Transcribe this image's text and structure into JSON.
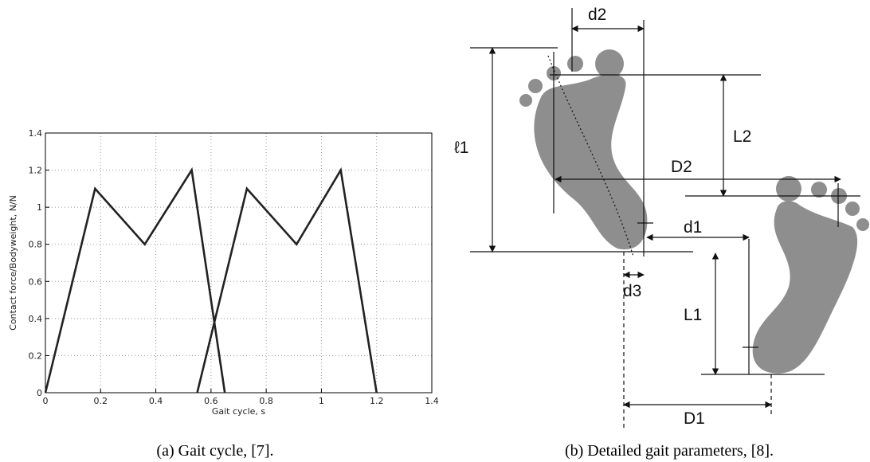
{
  "chart_data": {
    "type": "line",
    "xlabel": "Gait cycle, s",
    "ylabel": "Contact force/Bodyweight, N/N",
    "series": [
      {
        "color": "#222222",
        "x": [
          0,
          0.18,
          0.36,
          0.53,
          0.65
        ],
        "values": [
          0,
          1.1,
          0.8,
          1.2,
          0
        ]
      },
      {
        "color": "#222222",
        "x": [
          0.55,
          0.73,
          0.91,
          1.07,
          1.2
        ],
        "values": [
          0,
          1.1,
          0.8,
          1.2,
          0
        ]
      }
    ],
    "xlim": [
      0,
      1.4
    ],
    "xticks": [
      0,
      0.2,
      0.4,
      0.6,
      0.8,
      1,
      1.2,
      1.4
    ],
    "ylim": [
      0,
      1.4
    ],
    "yticks": [
      0,
      0.2,
      0.4,
      0.6,
      0.8,
      1,
      1.2,
      1.4
    ],
    "grid": true
  },
  "diagram": {
    "labels": [
      "d2",
      "ℓ1",
      "L2",
      "D2",
      "d1",
      "d3",
      "L1",
      "D1"
    ]
  },
  "captions": [
    "(a) Gait cycle, [7].",
    "(b) Detailed gait parameters, [8]."
  ]
}
